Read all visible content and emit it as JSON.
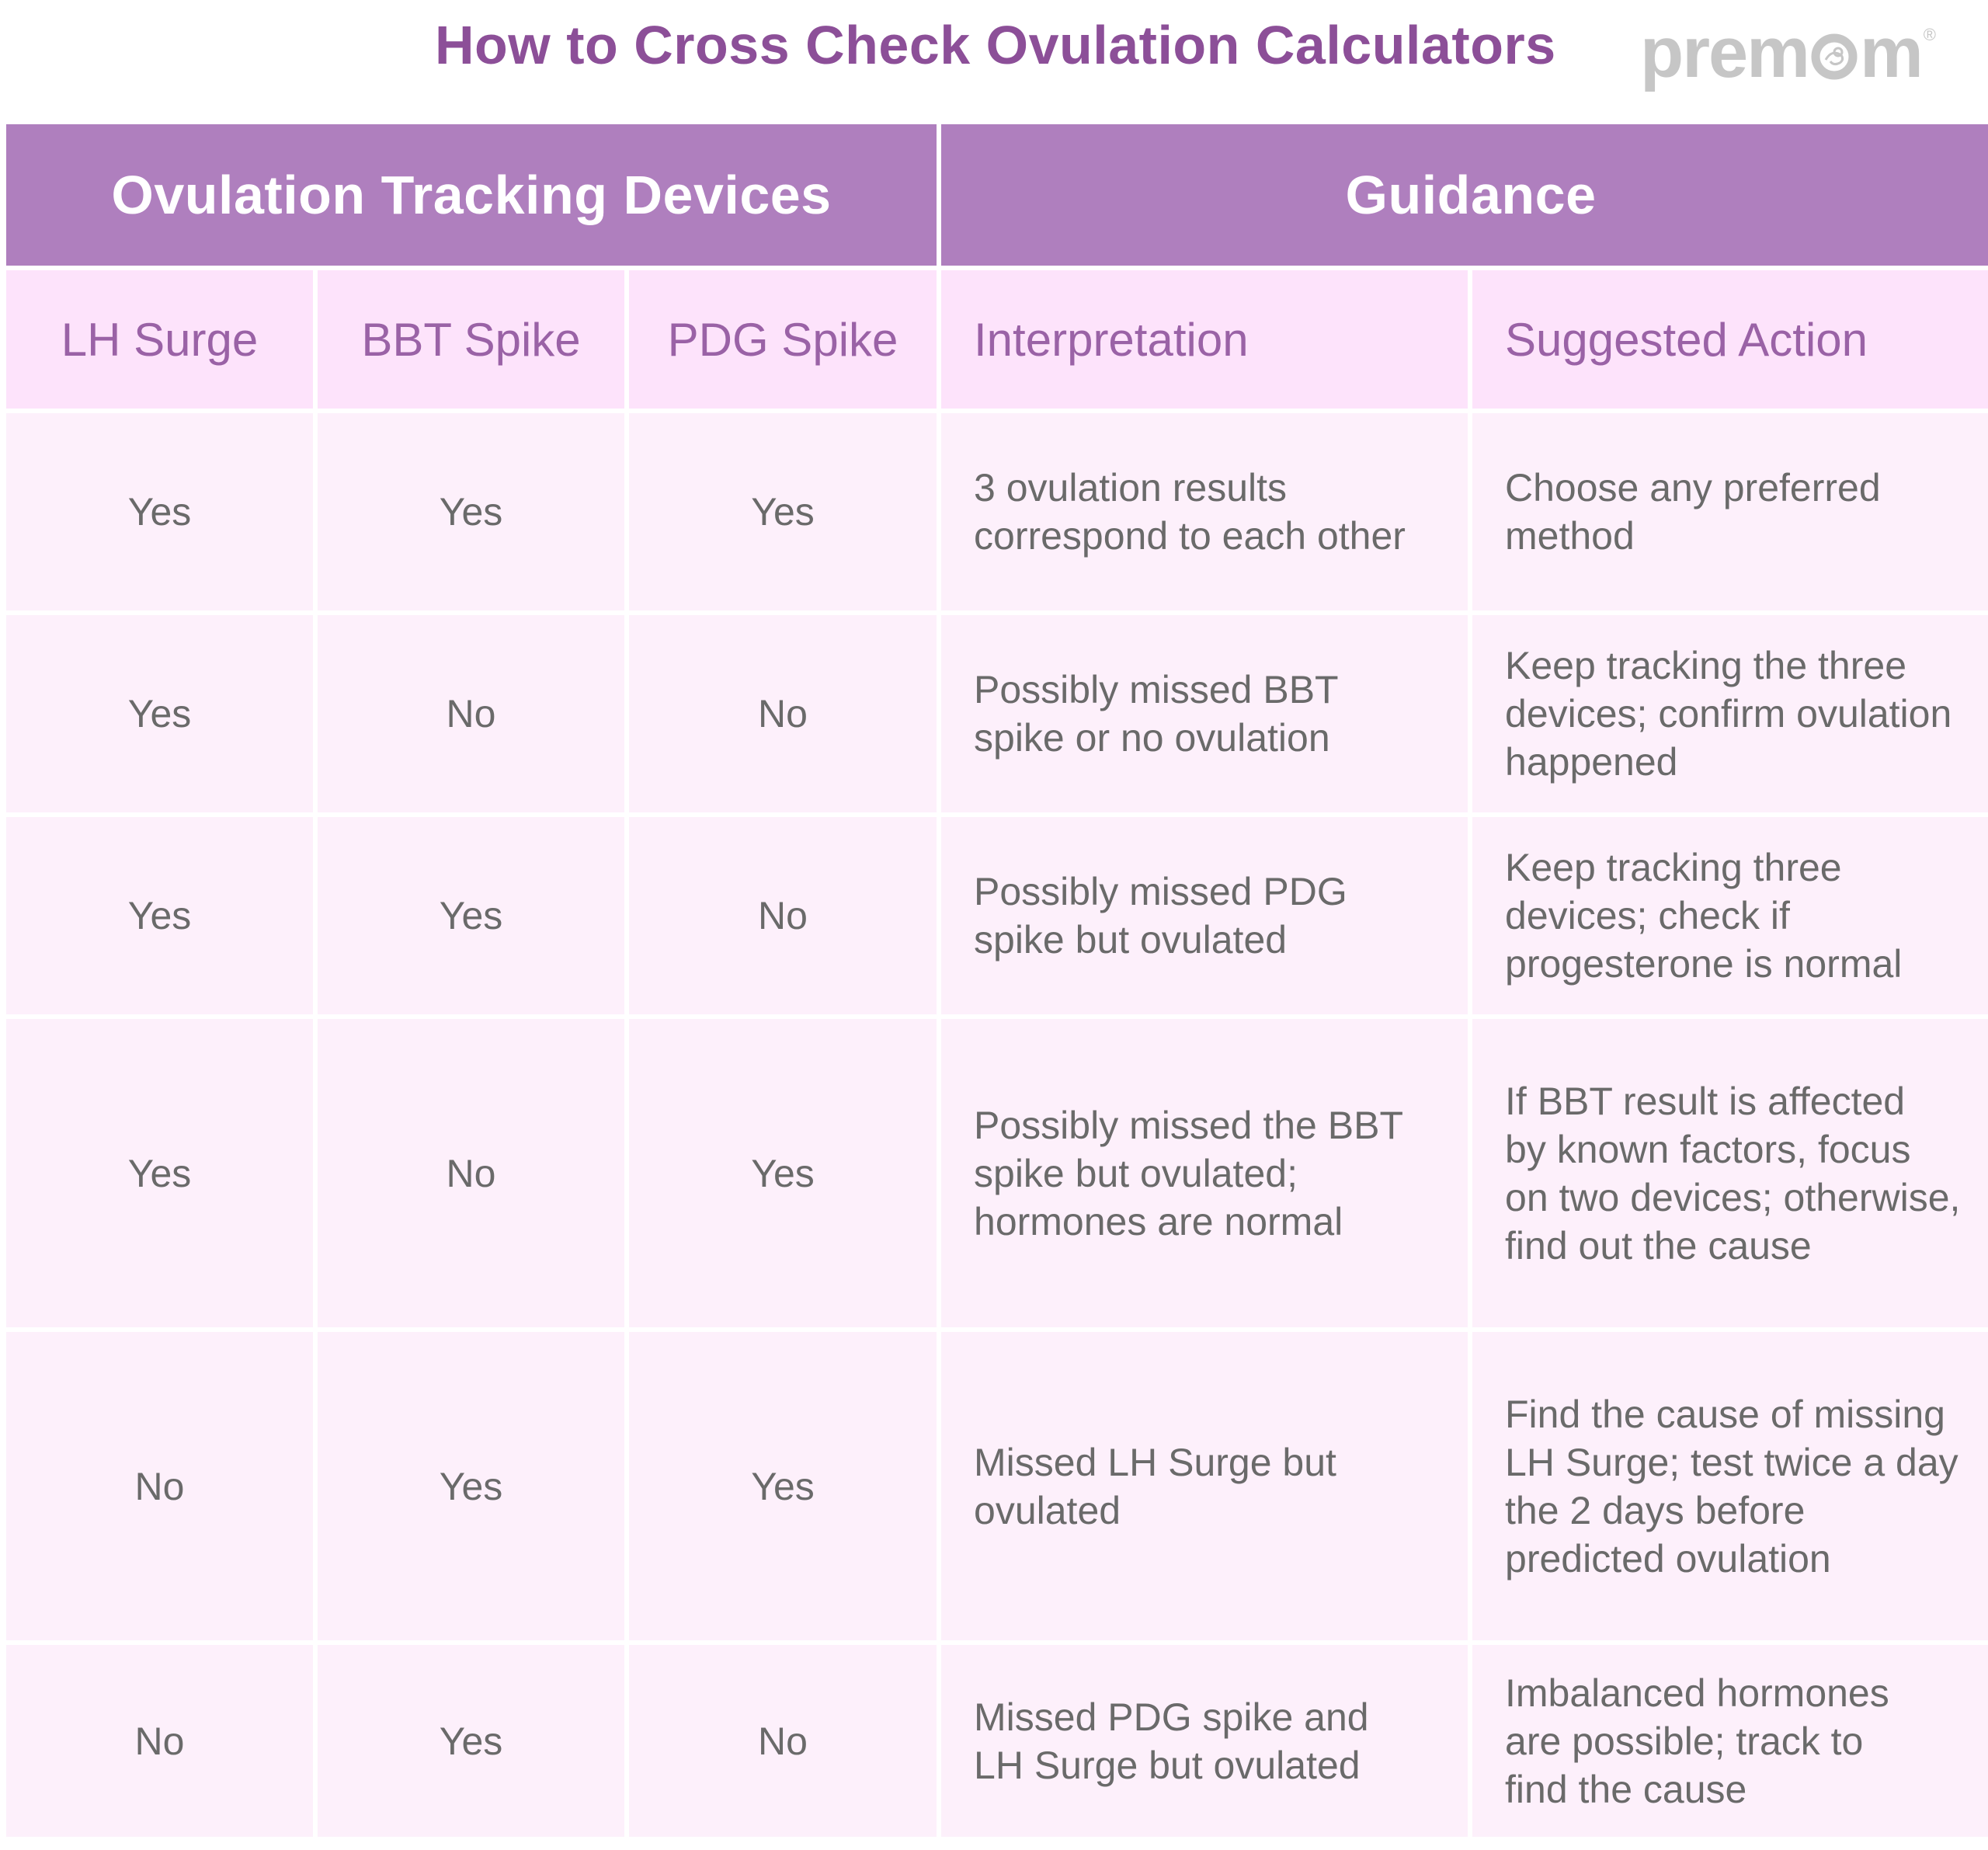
{
  "title": "How to Cross Check Ovulation Calculators",
  "logo": {
    "text_before": "prem",
    "text_after": "m",
    "registered_mark": "®",
    "icon": "baby-in-o-icon",
    "color": "#c6c6c6"
  },
  "colors": {
    "title": "#8c4f98",
    "group_header_bg": "#af7fbe",
    "sub_header_bg": "#fde3fb",
    "sub_header_text": "#9a62a6",
    "cell_bg": "#fdf0fb",
    "cell_text": "#6a6a6a"
  },
  "table": {
    "group_headers": [
      "Ovulation Tracking Devices",
      "Guidance"
    ],
    "column_headers": [
      "LH Surge",
      "BBT Spike",
      "PDG Spike",
      "Interpretation",
      "Suggested Action"
    ],
    "rows": [
      {
        "lh": "Yes",
        "bbt": "Yes",
        "pdg": "Yes",
        "interpretation": [
          "3 ovulation results",
          "correspond to each other"
        ],
        "action": [
          "Choose any preferred",
          "method"
        ]
      },
      {
        "lh": "Yes",
        "bbt": "No",
        "pdg": "No",
        "interpretation": [
          "Possibly missed BBT",
          "spike or no ovulation"
        ],
        "action": [
          "Keep tracking the three",
          "devices; confirm ovulation",
          "happened"
        ]
      },
      {
        "lh": "Yes",
        "bbt": "Yes",
        "pdg": "No",
        "interpretation": [
          "Possibly missed PDG",
          "spike but ovulated"
        ],
        "action": [
          "Keep tracking three",
          "devices; check if",
          "progesterone is normal"
        ]
      },
      {
        "lh": "Yes",
        "bbt": "No",
        "pdg": "Yes",
        "interpretation": [
          "Possibly missed the BBT",
          "spike but ovulated;",
          "hormones are normal"
        ],
        "action": [
          "If BBT result is affected",
          "by known factors, focus",
          "on two devices; otherwise,",
          "find out the cause"
        ]
      },
      {
        "lh": "No",
        "bbt": "Yes",
        "pdg": "Yes",
        "interpretation": [
          "Missed LH Surge but",
          "ovulated"
        ],
        "action": [
          "Find the cause of missing",
          "LH Surge; test twice a day",
          "the 2 days before",
          "predicted ovulation"
        ]
      },
      {
        "lh": "No",
        "bbt": "Yes",
        "pdg": "No",
        "interpretation": [
          "Missed PDG spike and",
          "LH Surge but ovulated"
        ],
        "action": [
          "Imbalanced hormones",
          "are possible; track to",
          "find the cause"
        ]
      }
    ]
  }
}
